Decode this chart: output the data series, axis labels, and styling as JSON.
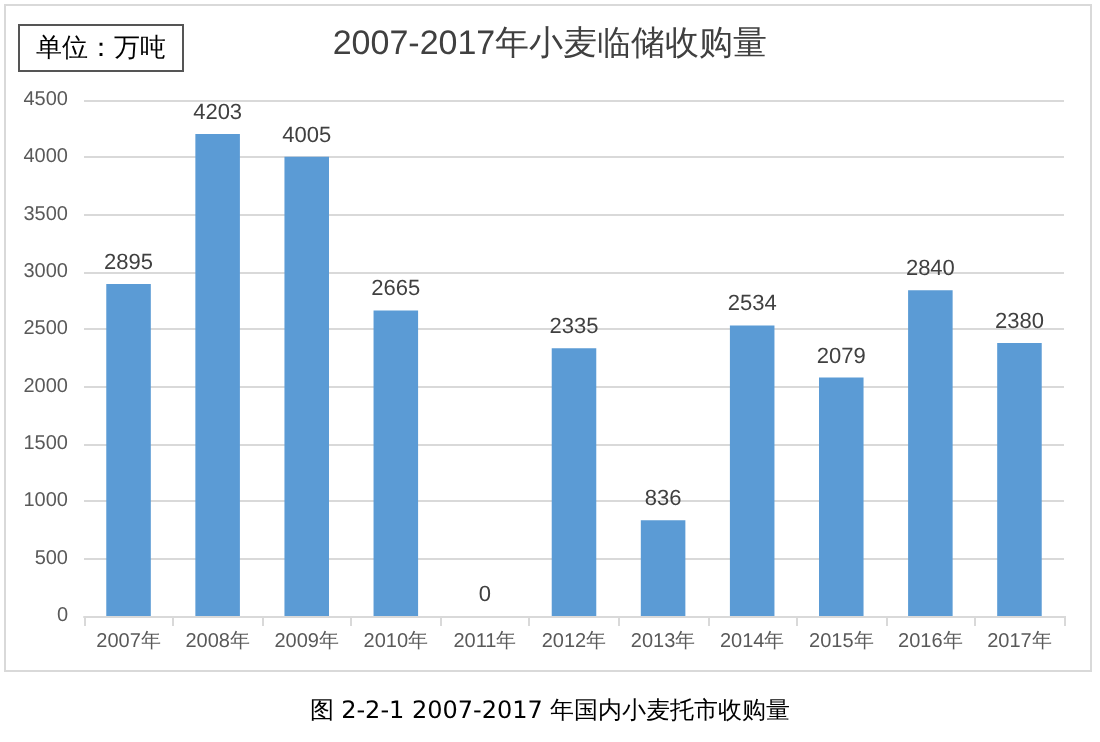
{
  "chart_data": {
    "type": "bar",
    "title": "2007-2017年小麦临储收购量",
    "categories": [
      "2007年",
      "2008年",
      "2009年",
      "2010年",
      "2011年",
      "2012年",
      "2013年",
      "2014年",
      "2015年",
      "2016年",
      "2017年"
    ],
    "values": [
      2895,
      4203,
      4005,
      2665,
      0,
      2335,
      836,
      2534,
      2079,
      2840,
      2380
    ],
    "color": "#5b9bd5",
    "ylim": [
      0,
      4500
    ],
    "yticks": [
      0,
      500,
      1000,
      1500,
      2000,
      2500,
      3000,
      3500,
      4000,
      4500
    ],
    "grid": "y",
    "data_labels": true,
    "annotations": [
      "单位：万吨",
      "图 2-2-1 2007-2017 年国内小麦托市收购量"
    ]
  }
}
